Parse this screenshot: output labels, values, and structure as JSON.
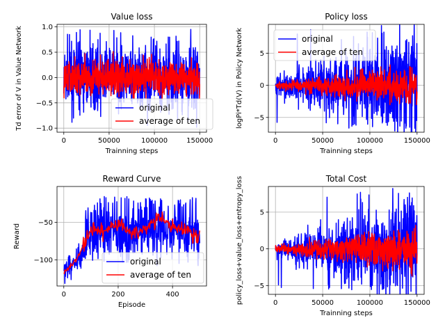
{
  "figure": {
    "background": "#ffffff",
    "colors": {
      "original": "#0000ff",
      "average": "#ff0000",
      "grid": "#b0b0b0"
    }
  },
  "chart_data": [
    {
      "type": "line",
      "title": "Value loss",
      "xlabel": "Trainning steps",
      "ylabel": "Td error of V in Value Network",
      "xlim": [
        -7500,
        157500
      ],
      "ylim": [
        -1.08,
        1.05
      ],
      "xticks": [
        0,
        50000,
        100000,
        150000
      ],
      "xtick_labels": [
        "0",
        "50000",
        "100000",
        "150000"
      ],
      "yticks": [
        -1.0,
        -0.5,
        0.0,
        0.5,
        1.0
      ],
      "ytick_labels": [
        "−1.0",
        "−0.5",
        "0.0",
        "0.5",
        "1.0"
      ],
      "grid": true,
      "legend_position": "lower-right",
      "legend": [
        "original",
        "average of ten"
      ],
      "series": [
        {
          "name": "original",
          "color": "#0000ff",
          "x_range": [
            0,
            150000
          ],
          "approx_center": 0.0,
          "approx_band": [
            -0.6,
            0.6
          ],
          "approx_peaks": [
            -1.05,
            0.97
          ]
        },
        {
          "name": "average of ten",
          "color": "#ff0000",
          "x_range": [
            0,
            150000
          ],
          "approx_center": 0.0,
          "approx_band": [
            -0.3,
            0.35
          ]
        }
      ]
    },
    {
      "type": "line",
      "title": "Policy loss",
      "xlabel": "Trainning steps",
      "ylabel": "logPi*Td(V) in Policy Network",
      "xlim": [
        -7500,
        157500
      ],
      "ylim": [
        -7.3,
        9.5
      ],
      "xticks": [
        0,
        50000,
        100000,
        150000
      ],
      "xtick_labels": [
        "0",
        "50000",
        "100000",
        "150000"
      ],
      "yticks": [
        -5,
        0,
        5
      ],
      "ytick_labels": [
        "−5",
        "0",
        "5"
      ],
      "grid": true,
      "legend_position": "upper-left",
      "legend": [
        "original",
        "average of ten"
      ],
      "series": [
        {
          "name": "original",
          "color": "#0000ff",
          "x_range": [
            0,
            150000
          ],
          "approx_envelope_start": 1.5,
          "approx_envelope_end": 8.5,
          "approx_peaks": [
            -6.9,
            8.8
          ]
        },
        {
          "name": "average of ten",
          "color": "#ff0000",
          "x_range": [
            0,
            150000
          ],
          "approx_envelope_start": 0.5,
          "approx_envelope_end": 3.0
        }
      ]
    },
    {
      "type": "line",
      "title": "Reward Curve",
      "xlabel": "Episode",
      "ylabel": "Reward",
      "xlim": [
        -25,
        525
      ],
      "ylim": [
        -135,
        -2
      ],
      "xticks": [
        0,
        200,
        400
      ],
      "xtick_labels": [
        "0",
        "200",
        "400"
      ],
      "yticks": [
        -100,
        -50
      ],
      "ytick_labels": [
        "−100",
        "−50"
      ],
      "grid": true,
      "legend_position": "lower-right",
      "legend": [
        "original",
        "average of ten"
      ],
      "series": [
        {
          "name": "original",
          "color": "#0000ff",
          "x_range": [
            0,
            500
          ],
          "approx_start": -118,
          "approx_range": [
            -132,
            -10
          ]
        },
        {
          "name": "average of ten",
          "color": "#ff0000",
          "x_range": [
            0,
            500
          ],
          "approx_points": [
            [
              0,
              -118
            ],
            [
              50,
              -98
            ],
            [
              100,
              -60
            ],
            [
              150,
              -62
            ],
            [
              200,
              -52
            ],
            [
              250,
              -65
            ],
            [
              300,
              -58
            ],
            [
              350,
              -45
            ],
            [
              400,
              -55
            ],
            [
              450,
              -60
            ],
            [
              500,
              -72
            ]
          ]
        }
      ]
    },
    {
      "type": "line",
      "title": "Total Cost",
      "xlabel": "Trainning steps",
      "ylabel": "policy_loss+value_loss+entropy_loss",
      "xlim": [
        -7500,
        157500
      ],
      "ylim": [
        -6.2,
        8.5
      ],
      "xticks": [
        0,
        50000,
        100000,
        150000
      ],
      "xtick_labels": [
        "0",
        "50000",
        "100000",
        "150000"
      ],
      "yticks": [
        -5,
        0,
        5
      ],
      "ytick_labels": [
        "−5",
        "0",
        "5"
      ],
      "grid": true,
      "series": [
        {
          "name": "original",
          "color": "#0000ff",
          "x_range": [
            0,
            150000
          ],
          "approx_envelope_start": 1.0,
          "approx_envelope_end": 7.5,
          "approx_peaks": [
            -5.8,
            7.8
          ]
        },
        {
          "name": "average of ten",
          "color": "#ff0000",
          "x_range": [
            0,
            150000
          ],
          "approx_envelope_start": 0.4,
          "approx_envelope_end": 3.0
        }
      ]
    }
  ]
}
